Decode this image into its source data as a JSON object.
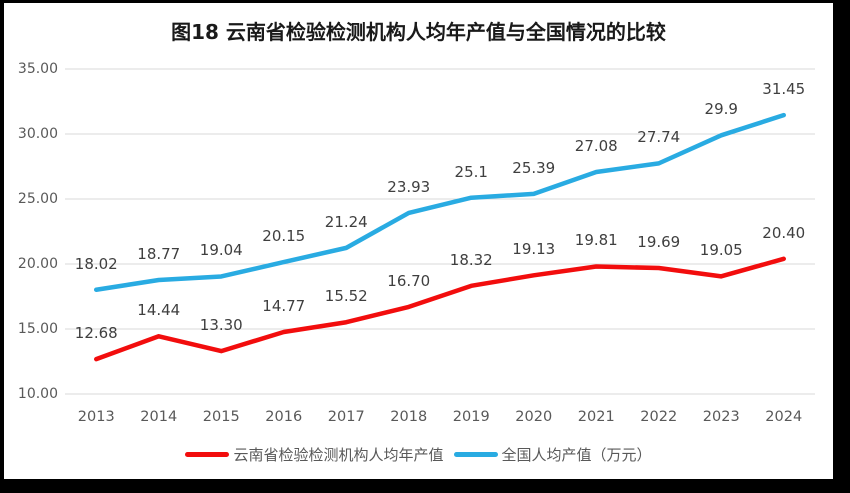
{
  "chart_data": {
    "type": "line",
    "title": "图18  云南省检验检测机构人均年产值与全国情况的比较",
    "categories": [
      "2013",
      "2014",
      "2015",
      "2016",
      "2017",
      "2018",
      "2019",
      "2020",
      "2021",
      "2022",
      "2023",
      "2024"
    ],
    "series": [
      {
        "name": "云南省检验检测机构人均年产值",
        "color": "#f20d0d",
        "values": [
          12.68,
          14.44,
          13.3,
          14.77,
          15.52,
          16.7,
          18.32,
          19.13,
          19.81,
          19.69,
          19.05,
          20.4
        ],
        "labels": [
          "12.68",
          "14.44",
          "13.30",
          "14.77",
          "15.52",
          "16.70",
          "18.32",
          "19.13",
          "19.81",
          "19.69",
          "19.05",
          "20.40"
        ]
      },
      {
        "name": "全国人均产值（万元）",
        "color": "#29abe2",
        "values": [
          18.02,
          18.77,
          19.04,
          20.15,
          21.24,
          23.93,
          25.1,
          25.39,
          27.08,
          27.74,
          29.9,
          31.45
        ],
        "labels": [
          "18.02",
          "18.77",
          "19.04",
          "20.15",
          "21.24",
          "23.93",
          "25.1",
          "25.39",
          "27.08",
          "27.74",
          "29.9",
          "31.45"
        ]
      }
    ],
    "y_axis": {
      "min": 10,
      "max": 35,
      "step": 5,
      "tick_labels": [
        "10.00",
        "15.00",
        "20.00",
        "25.00",
        "30.00",
        "35.00"
      ]
    },
    "xlabel": "",
    "ylabel": "",
    "grid": true,
    "gridline_color": "#d9d9d9",
    "legend_position": "bottom"
  }
}
